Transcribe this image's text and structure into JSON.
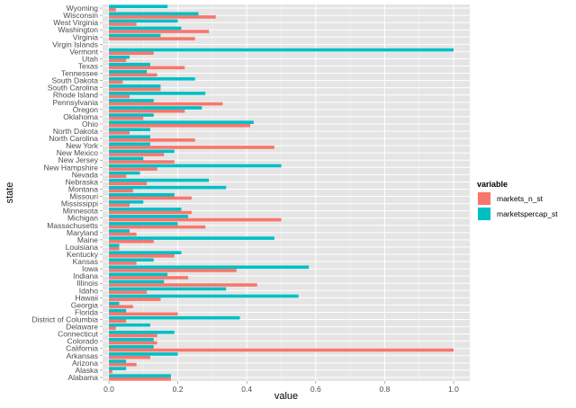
{
  "chart_data": {
    "type": "bar",
    "orientation": "horizontal",
    "xlabel": "value",
    "ylabel": "state",
    "xlim": [
      0,
      1
    ],
    "xticks": [
      "0.0",
      "0.2",
      "0.4",
      "0.6",
      "0.8",
      "1.0"
    ],
    "grid": true,
    "legend": {
      "title": "variable",
      "position": "right"
    },
    "categories": [
      "Alabama",
      "Alaska",
      "Arizona",
      "Arkansas",
      "California",
      "Colorado",
      "Connecticut",
      "Delaware",
      "District of Columbia",
      "Florida",
      "Georgia",
      "Hawaii",
      "Idaho",
      "Illinois",
      "Indiana",
      "Iowa",
      "Kansas",
      "Kentucky",
      "Louisiana",
      "Maine",
      "Maryland",
      "Massachusetts",
      "Michigan",
      "Minnesota",
      "Mississippi",
      "Missouri",
      "Montana",
      "Nebraska",
      "Nevada",
      "New Hampshire",
      "New Jersey",
      "New Mexico",
      "New York",
      "North Carolina",
      "North Dakota",
      "Ohio",
      "Oklahoma",
      "Oregon",
      "Pennsylvania",
      "Rhode Island",
      "South Carolina",
      "South Dakota",
      "Tennessee",
      "Texas",
      "Utah",
      "Vermont",
      "Virgin Islands",
      "Virginia",
      "Washington",
      "West Virginia",
      "Wisconsin",
      "Wyoming"
    ],
    "series": [
      {
        "name": "markets_n_st",
        "color": "#F8766D",
        "values": [
          0.18,
          0.01,
          0.08,
          0.12,
          1.0,
          0.14,
          0.14,
          0.02,
          0.05,
          0.2,
          0.07,
          0.15,
          0.11,
          0.43,
          0.23,
          0.37,
          0.08,
          0.19,
          0.03,
          0.13,
          0.08,
          0.28,
          0.5,
          0.24,
          0.06,
          0.24,
          0.07,
          0.11,
          0.05,
          0.14,
          0.19,
          0.16,
          0.48,
          0.25,
          0.06,
          0.41,
          0.1,
          0.22,
          0.33,
          0.06,
          0.15,
          0.04,
          0.14,
          0.22,
          0.05,
          0.13,
          0.0,
          0.25,
          0.29,
          0.08,
          0.31,
          0.02
        ]
      },
      {
        "name": "marketspercap_st",
        "color": "#00BFC4",
        "values": [
          0.18,
          0.05,
          0.05,
          0.2,
          0.13,
          0.13,
          0.19,
          0.12,
          0.38,
          0.05,
          0.03,
          0.55,
          0.34,
          0.16,
          0.17,
          0.58,
          0.13,
          0.21,
          0.03,
          0.48,
          0.06,
          0.2,
          0.23,
          0.21,
          0.1,
          0.19,
          0.34,
          0.29,
          0.09,
          0.5,
          0.1,
          0.19,
          0.12,
          0.12,
          0.12,
          0.42,
          0.13,
          0.27,
          0.13,
          0.28,
          0.15,
          0.25,
          0.11,
          0.12,
          0.06,
          1.0,
          0.0,
          0.15,
          0.21,
          0.2,
          0.26,
          0.17
        ]
      }
    ]
  }
}
